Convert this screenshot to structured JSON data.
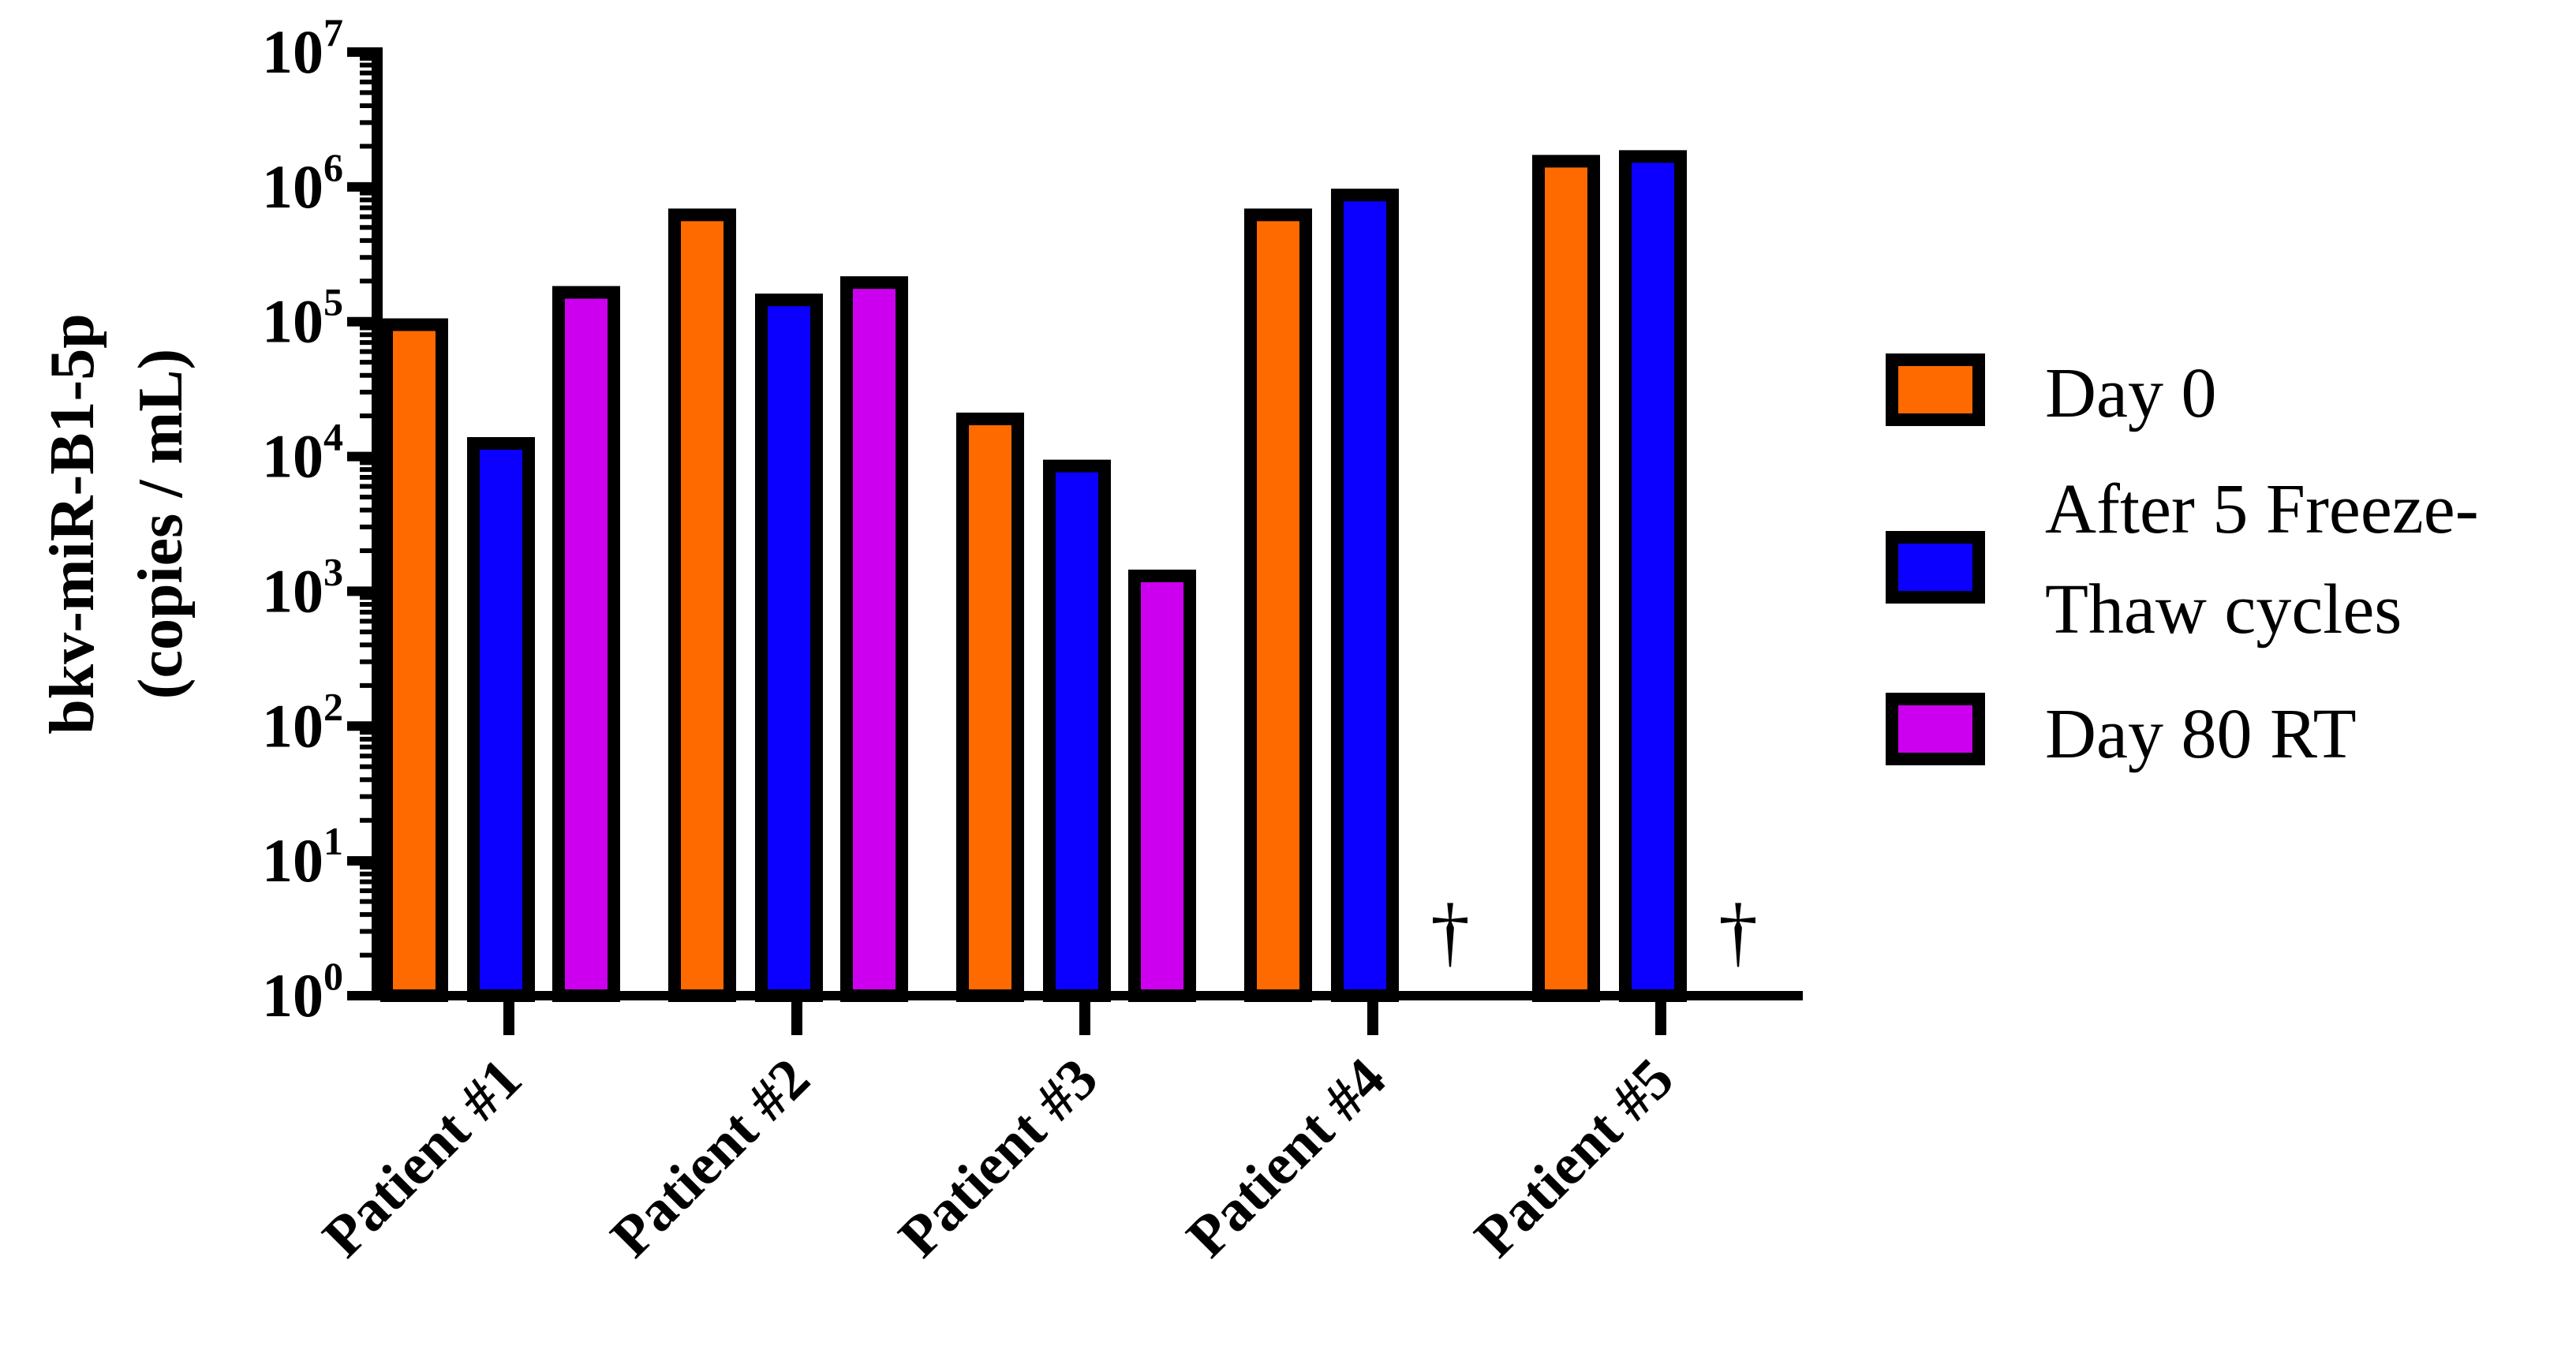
{
  "chart_data": {
    "type": "bar",
    "categories": [
      "Patient #1",
      "Patient #2",
      "Patient #3",
      "Patient #4",
      "Patient #5"
    ],
    "series": [
      {
        "name": "Day 0",
        "color": "#ff6a00",
        "values": [
          95000,
          620000,
          19000,
          620000,
          1550000
        ]
      },
      {
        "name": "After 5 Freeze-Thaw cycles",
        "color": "#0b00ff",
        "values": [
          12500,
          145000,
          8500,
          870000,
          1680000
        ]
      },
      {
        "name": "Day 80 RT",
        "color": "#cc00ee",
        "values": [
          165000,
          195000,
          1300,
          null,
          null
        ]
      }
    ],
    "missing_marker": "†",
    "ylabel_lines": [
      "bkv-miR-B1-5p",
      "(copies / mL)"
    ],
    "xlabel": "",
    "yscale": "log",
    "ylim": [
      1,
      10000000
    ],
    "y_ticks": [
      {
        "base": "10",
        "exp": "0"
      },
      {
        "base": "10",
        "exp": "1"
      },
      {
        "base": "10",
        "exp": "2"
      },
      {
        "base": "10",
        "exp": "3"
      },
      {
        "base": "10",
        "exp": "4"
      },
      {
        "base": "10",
        "exp": "5"
      },
      {
        "base": "10",
        "exp": "6"
      },
      {
        "base": "10",
        "exp": "7"
      }
    ],
    "legend_lines": [
      [
        "Day 0"
      ],
      [
        "After 5 Freeze-",
        "Thaw cycles"
      ],
      [
        "Day 80 RT"
      ]
    ],
    "legend_position": "right",
    "grid": false
  }
}
